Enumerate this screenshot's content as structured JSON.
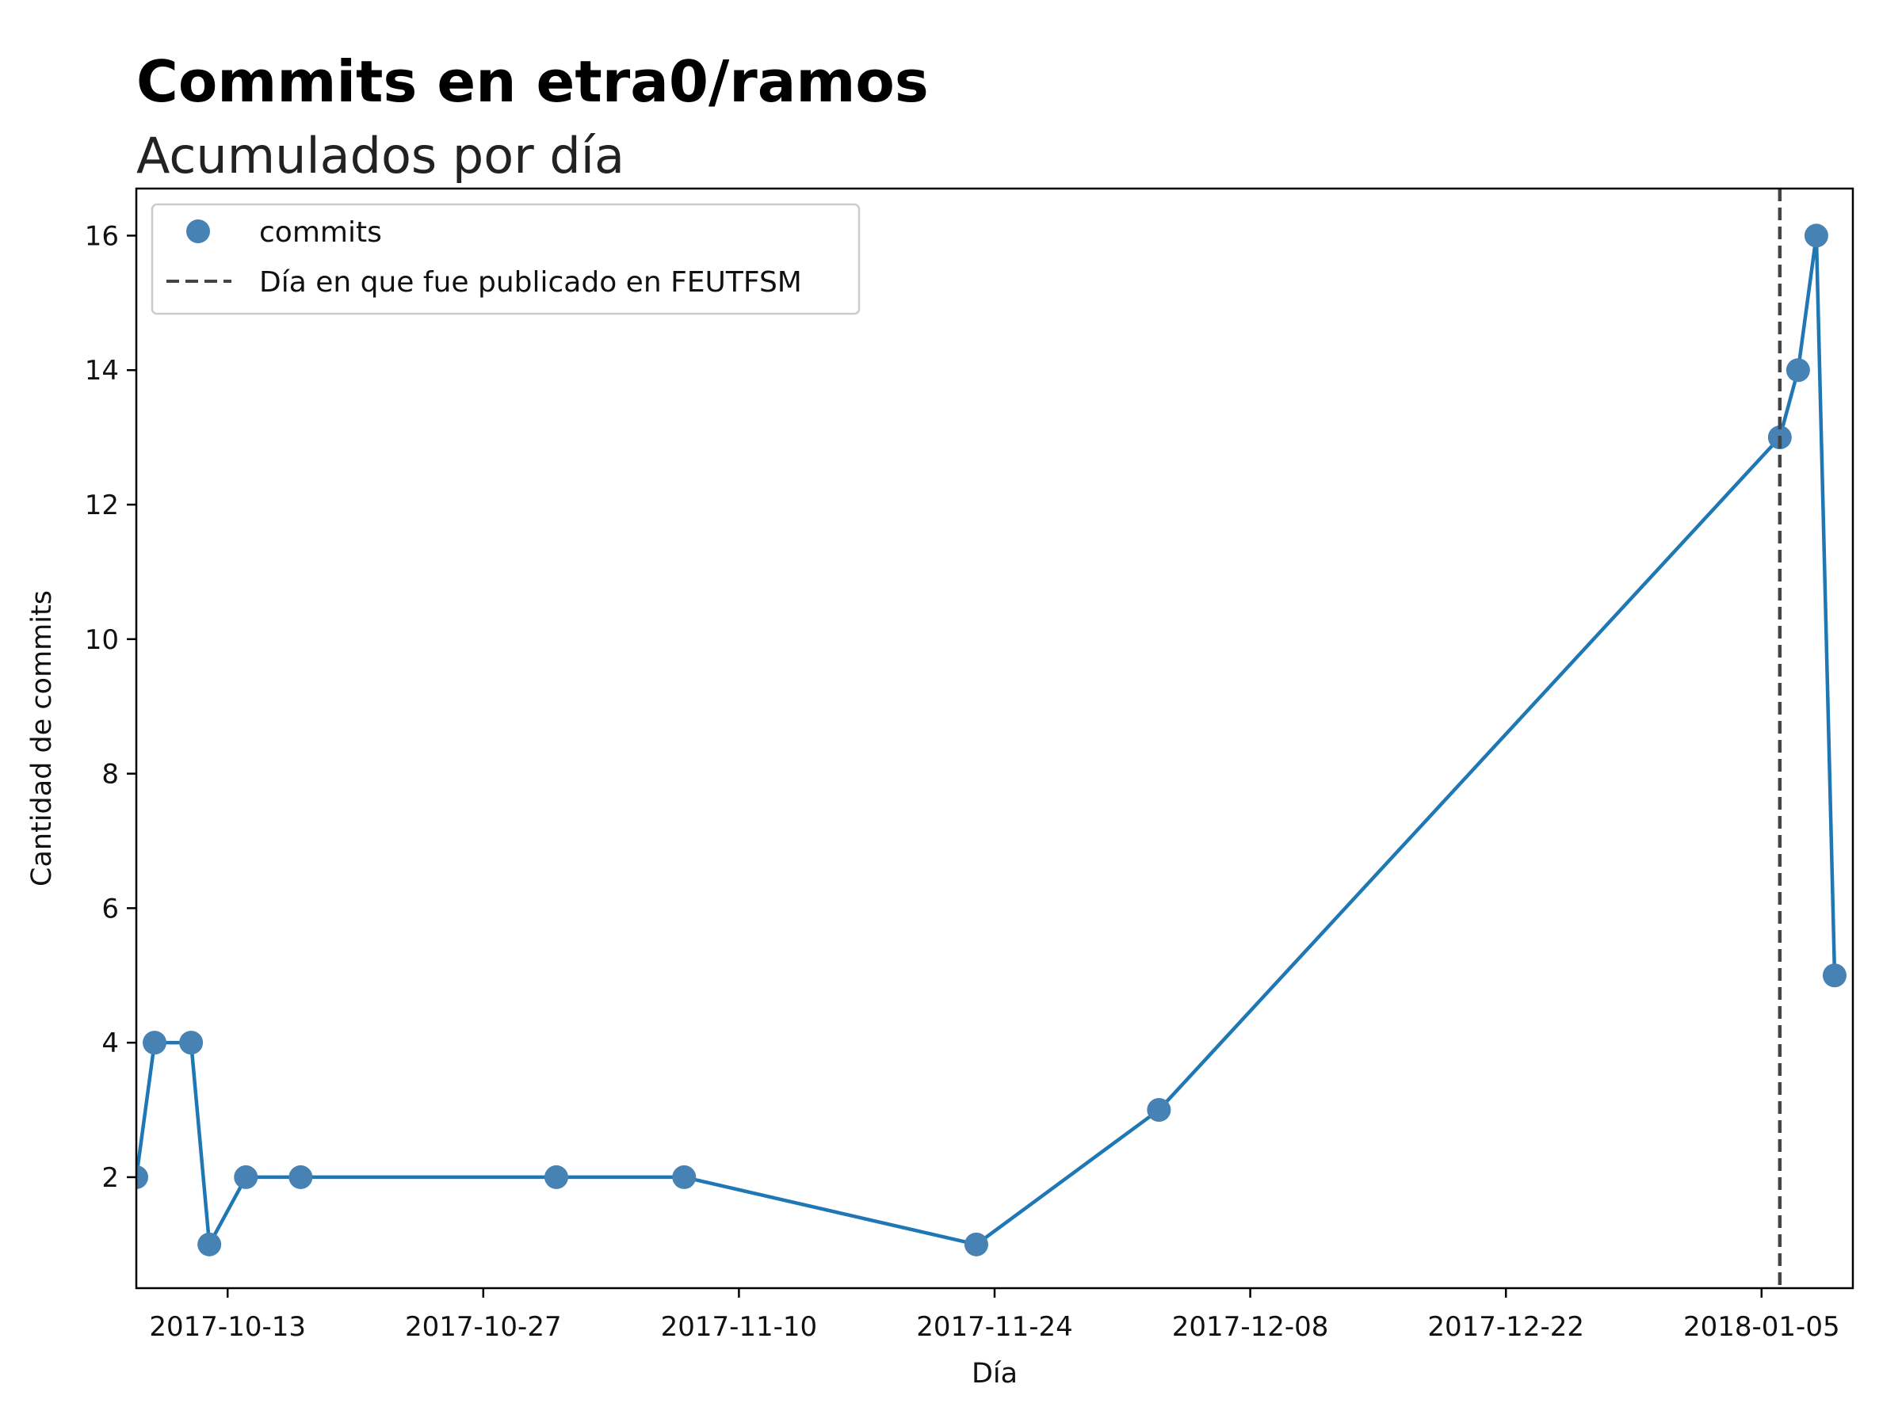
{
  "chart_data": {
    "type": "line",
    "title": "Commits en etra0/ramos",
    "subtitle": "Acumulados por día",
    "xlabel": "Día",
    "ylabel": "Cantidad de commits",
    "x_tick_labels": [
      "2017-10-13",
      "2017-10-27",
      "2017-11-10",
      "2017-11-24",
      "2017-12-08",
      "2017-12-22",
      "2018-01-05"
    ],
    "y_tick_labels": [
      "2",
      "4",
      "6",
      "8",
      "10",
      "12",
      "14",
      "16"
    ],
    "xlim": [
      "2017-10-08",
      "2018-01-10"
    ],
    "ylim": [
      0.35,
      16.7
    ],
    "grid": false,
    "legend_position": "top-left",
    "series": [
      {
        "name": "commits",
        "color": "#1f77b4",
        "marker_color": "#4682b4",
        "x": [
          "2017-10-08",
          "2017-10-09",
          "2017-10-11",
          "2017-10-12",
          "2017-10-14",
          "2017-10-17",
          "2017-10-31",
          "2017-11-07",
          "2017-11-23",
          "2017-12-03",
          "2018-01-06",
          "2018-01-07",
          "2018-01-08",
          "2018-01-09"
        ],
        "values": [
          2,
          4,
          4,
          1,
          2,
          2,
          2,
          2,
          1,
          3,
          13,
          14,
          16,
          5
        ]
      }
    ],
    "vline": {
      "label": "Día en que fue publicado en FEUTFSM",
      "x": "2018-01-06",
      "color": "#444444",
      "style": "dashed"
    }
  }
}
